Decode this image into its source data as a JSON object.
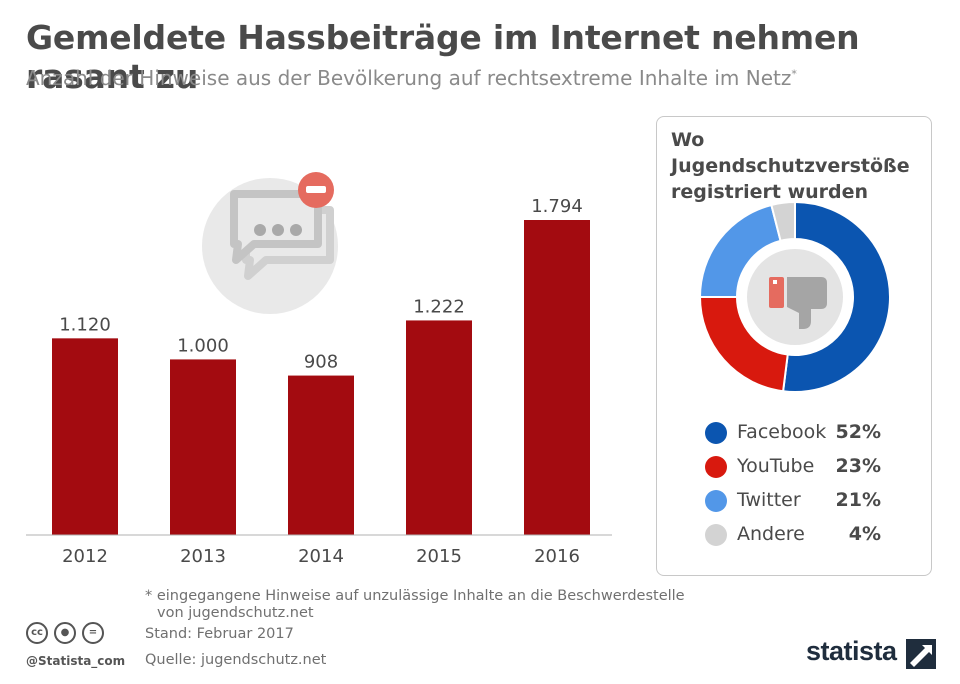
{
  "title": "Gemeldete Hassbeiträge im Internet nehmen rasant zu",
  "subtitle": "Anzahl der Hinweise aus der Bevölkerung auf rechtsextreme Inhalte im Netz",
  "subtitle_mark": "*",
  "chart_data": [
    {
      "type": "bar",
      "categories": [
        "2012",
        "2013",
        "2014",
        "2015",
        "2016"
      ],
      "values": [
        1120,
        1000,
        908,
        1222,
        1794
      ],
      "value_labels": [
        "1.120",
        "1.000",
        "908",
        "1.222",
        "1.794"
      ],
      "bar_color": "#a30b10",
      "ylim": [
        0,
        1800
      ],
      "grid": false
    },
    {
      "type": "pie",
      "donut": true,
      "title": "Wo Jugendschutzverstöße registriert wurden",
      "slices": [
        {
          "label": "Facebook",
          "value": 52,
          "value_label": "52%",
          "color": "#0b55b0"
        },
        {
          "label": "YouTube",
          "value": 23,
          "value_label": "23%",
          "color": "#d8190e"
        },
        {
          "label": "Twitter",
          "value": 21,
          "value_label": "21%",
          "color": "#5297e8"
        },
        {
          "label": "Andere",
          "value": 4,
          "value_label": "4%",
          "color": "#d3d3d3"
        }
      ],
      "legend_position": "bottom"
    }
  ],
  "footnote_line1": "* eingegangene Hinweise auf unzulässige Inhalte an die Beschwerdestelle",
  "footnote_line2": "von jugendschutz.net",
  "stand": "Stand: Februar 2017",
  "source": "Quelle: jugendschutz.net",
  "handle": "@Statista_com",
  "license_icons": [
    "cc-icon",
    "attribution-icon",
    "no-derivatives-icon"
  ],
  "brand": "statista"
}
